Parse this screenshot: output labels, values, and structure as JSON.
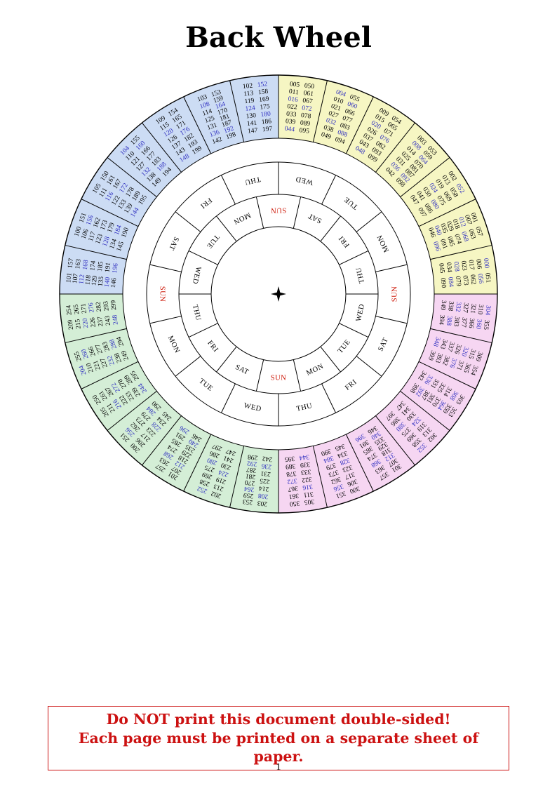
{
  "page": {
    "title": "Back Wheel",
    "page_number": "1"
  },
  "warning": {
    "line1": "Do NOT print this document double-sided!",
    "line2": "Each page must be printed on a separate sheet of paper."
  },
  "colors": {
    "quadrants": {
      "century0": "#f6f6c3",
      "century1": "#ccdcf4",
      "century2": "#d4eed6",
      "century3": "#f6d6f2"
    },
    "number": "#000000",
    "leap_number": "#3030c0",
    "day": "#000000",
    "sunday": "#cc1100",
    "line": "#000000"
  },
  "icons": {
    "center_marker": "four-pointed-star"
  },
  "wheel": {
    "segments": [
      {
        "id": "Y6",
        "century": "century0",
        "col1": [
          "005",
          "011",
          "016",
          "022",
          "033",
          "039",
          "044"
        ],
        "col2": [
          "050",
          "061",
          "067",
          "072",
          "078",
          "089",
          "095"
        ]
      },
      {
        "id": "Y5",
        "century": "century0",
        "col1": [
          "004",
          "010",
          "021",
          "027",
          "032",
          "038",
          "049"
        ],
        "col2": [
          "055",
          "060",
          "066",
          "077",
          "083",
          "088",
          "094"
        ]
      },
      {
        "id": "Y4",
        "century": "century0",
        "col1": [
          "009",
          "015",
          "020",
          "026",
          "037",
          "043",
          "048"
        ],
        "col2": [
          "054",
          "065",
          "071",
          "076",
          "082",
          "093",
          "099"
        ]
      },
      {
        "id": "Y3",
        "century": "century0",
        "col1": [
          "003",
          "008",
          "014",
          "025",
          "031",
          "036",
          "042"
        ],
        "col2": [
          "053",
          "059",
          "064",
          "070",
          "081",
          "087",
          "092",
          "098"
        ]
      },
      {
        "id": "Y2",
        "century": "century0",
        "col1": [
          "002",
          "013",
          "019",
          "024",
          "030",
          "041",
          "047"
        ],
        "col2": [
          "052",
          "058",
          "069",
          "075",
          "080",
          "086",
          "097"
        ]
      },
      {
        "id": "Y1",
        "century": "century0",
        "col1": [
          "001",
          "007",
          "012",
          "018",
          "029",
          "035",
          "040",
          "046"
        ],
        "col2": [
          "057",
          "063",
          "068",
          "074",
          "085",
          "091",
          "096"
        ]
      },
      {
        "id": "Y0",
        "century": "century0",
        "col1": [
          "000",
          "006",
          "017",
          "023",
          "028",
          "034",
          "045"
        ],
        "col2": [
          "051",
          "056",
          "062",
          "073",
          "079",
          "084",
          "090"
        ]
      },
      {
        "id": "P6",
        "century": "century3",
        "col1": [
          "304",
          "310",
          "321",
          "327",
          "332",
          "338",
          "349"
        ],
        "col2": [
          "355",
          "360",
          "366",
          "377",
          "383",
          "388",
          "394"
        ]
      },
      {
        "id": "P5",
        "century": "century3",
        "col1": [
          "309",
          "315",
          "320",
          "326",
          "337",
          "343",
          "348"
        ],
        "col2": [
          "354",
          "365",
          "371",
          "376",
          "382",
          "393",
          "399"
        ]
      },
      {
        "id": "P4",
        "century": "century3",
        "col1": [
          "303",
          "308",
          "314",
          "325",
          "331",
          "336",
          "342"
        ],
        "col2": [
          "353",
          "359",
          "364",
          "370",
          "381",
          "387",
          "392",
          "398"
        ]
      },
      {
        "id": "P3",
        "century": "century3",
        "col1": [
          "302",
          "313",
          "319",
          "324",
          "330",
          "341",
          "347"
        ],
        "col2": [
          "352",
          "358",
          "369",
          "375",
          "380",
          "386",
          "397"
        ]
      },
      {
        "id": "P2",
        "century": "century3",
        "col1": [
          "301",
          "307",
          "312",
          "318",
          "329",
          "335",
          "340",
          "346"
        ],
        "col2": [
          "357",
          "363",
          "368",
          "374",
          "385",
          "391",
          "396"
        ]
      },
      {
        "id": "P1",
        "century": "century3",
        "col1": [
          "300",
          "306",
          "317",
          "323",
          "328",
          "334",
          "345"
        ],
        "col2": [
          "351",
          "356",
          "362",
          "373",
          "379",
          "384",
          "390"
        ]
      },
      {
        "id": "P0",
        "century": "century3",
        "col1": [
          "305",
          "311",
          "316",
          "322",
          "333",
          "339",
          "344"
        ],
        "col2": [
          "350",
          "361",
          "367",
          "372",
          "378",
          "389",
          "395"
        ]
      },
      {
        "id": "G6",
        "century": "century2",
        "col1": [
          "203",
          "208",
          "214",
          "225",
          "231",
          "236",
          "242"
        ],
        "col2": [
          "253",
          "259",
          "264",
          "270",
          "281",
          "287",
          "292",
          "298"
        ]
      },
      {
        "id": "G5",
        "century": "century2",
        "col1": [
          "202",
          "213",
          "219",
          "224",
          "230",
          "241",
          "247"
        ],
        "col2": [
          "252",
          "258",
          "269",
          "275",
          "280",
          "286",
          "297"
        ]
      },
      {
        "id": "G4",
        "century": "century2",
        "col1": [
          "201",
          "207",
          "212",
          "218",
          "229",
          "235",
          "240",
          "246"
        ],
        "col2": [
          "257",
          "263",
          "268",
          "274",
          "285",
          "291",
          "296"
        ]
      },
      {
        "id": "G3",
        "century": "century2",
        "col1": [
          "200",
          "206",
          "217",
          "223",
          "228",
          "234",
          "245"
        ],
        "col2": [
          "251",
          "256",
          "262",
          "273",
          "279",
          "284",
          "290"
        ]
      },
      {
        "id": "G2",
        "century": "century2",
        "col1": [
          "205",
          "211",
          "216",
          "222",
          "233",
          "239",
          "244"
        ],
        "col2": [
          "250",
          "261",
          "267",
          "272",
          "278",
          "289",
          "295"
        ]
      },
      {
        "id": "G1",
        "century": "century2",
        "col1": [
          "204",
          "210",
          "221",
          "227",
          "232",
          "238",
          "249"
        ],
        "col2": [
          "255",
          "260",
          "266",
          "277",
          "283",
          "288",
          "294"
        ]
      },
      {
        "id": "G0",
        "century": "century2",
        "col1": [
          "209",
          "215",
          "220",
          "226",
          "237",
          "243",
          "248"
        ],
        "col2": [
          "254",
          "265",
          "271",
          "276",
          "282",
          "293",
          "299"
        ]
      },
      {
        "id": "B6",
        "century": "century1",
        "col1": [
          "101",
          "107",
          "112",
          "118",
          "129",
          "135",
          "140",
          "146"
        ],
        "col2": [
          "157",
          "163",
          "168",
          "174",
          "185",
          "191",
          "196"
        ]
      },
      {
        "id": "B5",
        "century": "century1",
        "col1": [
          "100",
          "106",
          "117",
          "123",
          "128",
          "134",
          "145"
        ],
        "col2": [
          "151",
          "156",
          "162",
          "173",
          "179",
          "184",
          "190"
        ]
      },
      {
        "id": "B4",
        "century": "century1",
        "col1": [
          "105",
          "111",
          "116",
          "122",
          "133",
          "139",
          "144"
        ],
        "col2": [
          "150",
          "161",
          "167",
          "172",
          "178",
          "189",
          "195"
        ]
      },
      {
        "id": "B3",
        "century": "century1",
        "col1": [
          "104",
          "110",
          "121",
          "127",
          "132",
          "138",
          "149"
        ],
        "col2": [
          "155",
          "160",
          "166",
          "177",
          "183",
          "188",
          "194"
        ]
      },
      {
        "id": "B2",
        "century": "century1",
        "col1": [
          "109",
          "115",
          "120",
          "126",
          "137",
          "143",
          "148"
        ],
        "col2": [
          "154",
          "165",
          "171",
          "176",
          "182",
          "193",
          "199"
        ]
      },
      {
        "id": "B1",
        "century": "century1",
        "col1": [
          "103",
          "108",
          "114",
          "125",
          "131",
          "136",
          "142"
        ],
        "col2": [
          "153",
          "159",
          "164",
          "170",
          "181",
          "187",
          "192",
          "198"
        ]
      },
      {
        "id": "B0",
        "century": "century1",
        "col1": [
          "102",
          "113",
          "119",
          "124",
          "130",
          "141",
          "147"
        ],
        "col2": [
          "152",
          "158",
          "169",
          "175",
          "180",
          "186",
          "197"
        ]
      }
    ],
    "day_ring_outer": {
      "labels": [
        "WED",
        "TUE",
        "MON",
        "SUN",
        "SAT",
        "FRI",
        "THU",
        "WED",
        "TUE",
        "MON",
        "SUN",
        "SAT",
        "FRI",
        "THU"
      ]
    },
    "day_ring_inner": {
      "labels": [
        "SUN",
        "SAT",
        "FRI",
        "THU",
        "WED",
        "TUE",
        "MON",
        "SUN",
        "SAT",
        "FRI",
        "THU",
        "WED",
        "TUE",
        "MON"
      ]
    }
  }
}
